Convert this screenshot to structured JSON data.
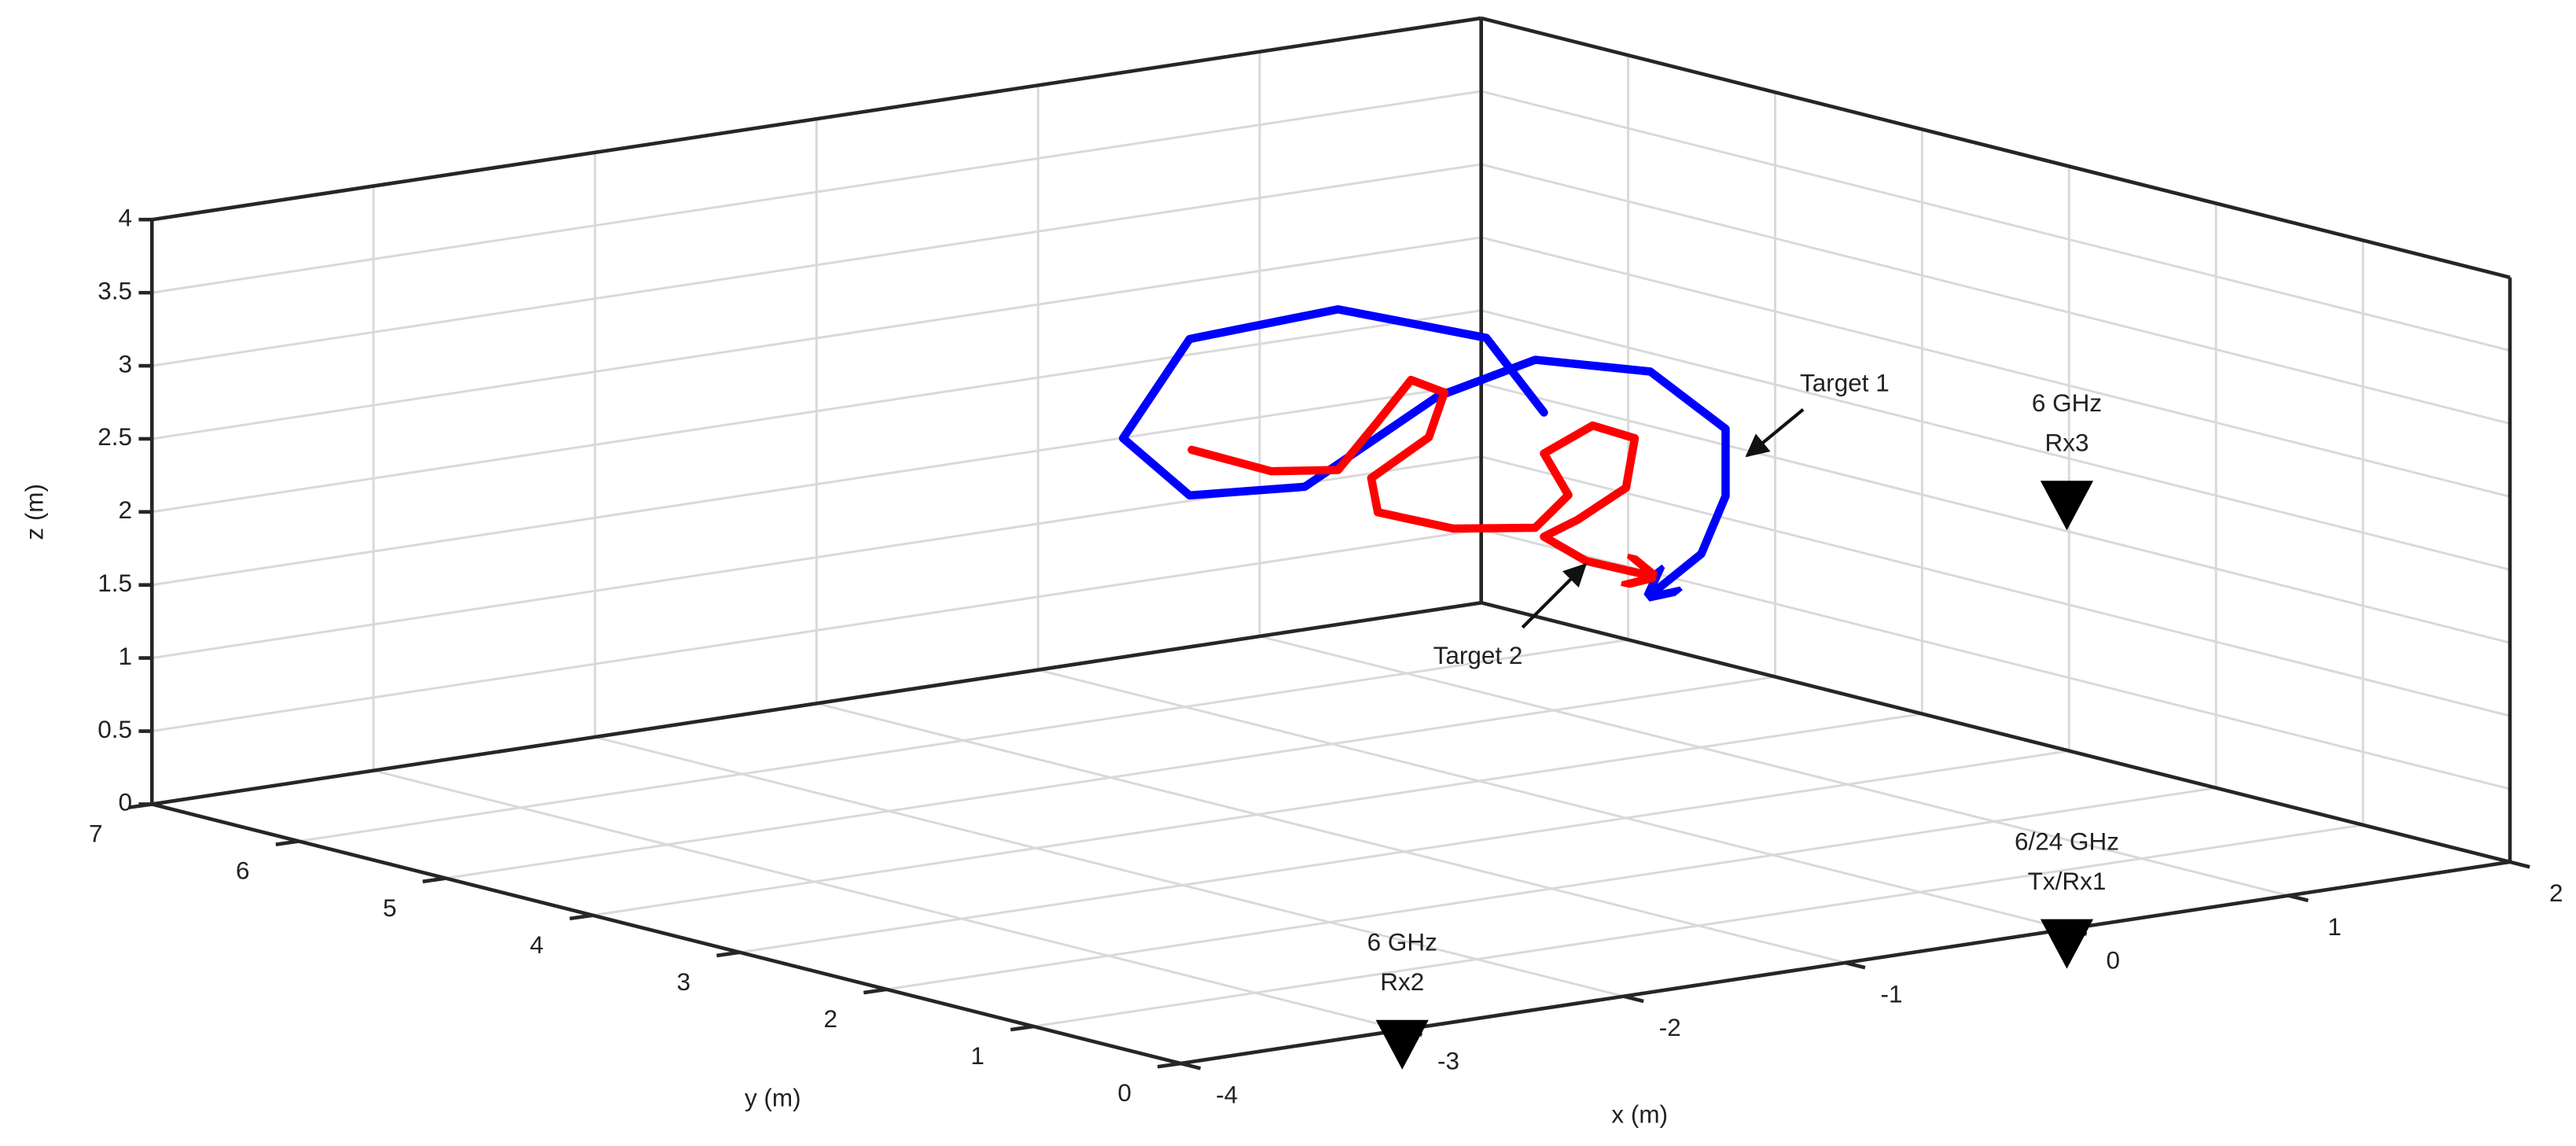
{
  "chart_data": {
    "type": "line3d",
    "xlabel": "x (m)",
    "ylabel": "y (m)",
    "zlabel": "z (m)",
    "xlim": [
      -4,
      2
    ],
    "xticks": [
      -4,
      -3,
      -2,
      -1,
      0,
      1,
      2
    ],
    "ylim": [
      0,
      7
    ],
    "yticks": [
      0,
      1,
      2,
      3,
      4,
      5,
      6,
      7
    ],
    "zlim": [
      0,
      4
    ],
    "zticks": [
      0,
      0.5,
      1,
      1.5,
      2,
      2.5,
      3,
      3.5,
      4
    ],
    "grid": true,
    "series": [
      {
        "name": "Target 1",
        "color": "#0000ff",
        "x": [
          -0.37,
          -0.63,
          -1.3,
          -1.97,
          -2.27,
          -1.97,
          -1.45,
          -0.85,
          -0.41,
          0.11,
          0.45,
          0.45,
          0.34,
          0.14
        ],
        "y": [
          3,
          3,
          3,
          3,
          3,
          3,
          3,
          3,
          3,
          3,
          3,
          3,
          3,
          3
        ],
        "z": [
          2.86,
          3.43,
          3.78,
          3.73,
          3.12,
          2.66,
          2.6,
          3.08,
          3.23,
          3.03,
          2.56,
          2.1,
          1.73,
          1.53
        ]
      },
      {
        "name": "Target 2",
        "color": "#ff0000",
        "x": [
          -1.96,
          -1.6,
          -1.3,
          -1.12,
          -0.97,
          -0.82,
          -0.89,
          -1.15,
          -1.12,
          -0.78,
          -0.41,
          -0.26,
          -0.37,
          -0.15,
          0.04,
          0.0,
          -0.22,
          -0.37,
          -0.18,
          0.08
        ],
        "y": [
          3,
          3,
          3,
          3,
          3,
          3,
          3,
          3,
          3,
          3,
          3,
          3,
          3,
          3,
          3,
          3,
          3,
          3,
          3,
          3
        ],
        "z": [
          2.97,
          2.74,
          2.68,
          2.97,
          3.22,
          3.1,
          2.81,
          2.59,
          2.35,
          2.16,
          2.08,
          2.27,
          2.58,
          2.72,
          2.59,
          2.26,
          2.09,
          2.01,
          1.8,
          1.65
        ]
      }
    ],
    "sensors": [
      {
        "band": "6/24 GHz",
        "name": "Tx/Rx1",
        "x": 0,
        "y": 0,
        "z": 0
      },
      {
        "band": "6 GHz",
        "name": "Rx2",
        "x": -3,
        "y": 0,
        "z": 0
      },
      {
        "band": "6 GHz",
        "name": "Rx3",
        "x": 0,
        "y": 0,
        "z": 3
      }
    ],
    "sensor_color": "#000000"
  }
}
